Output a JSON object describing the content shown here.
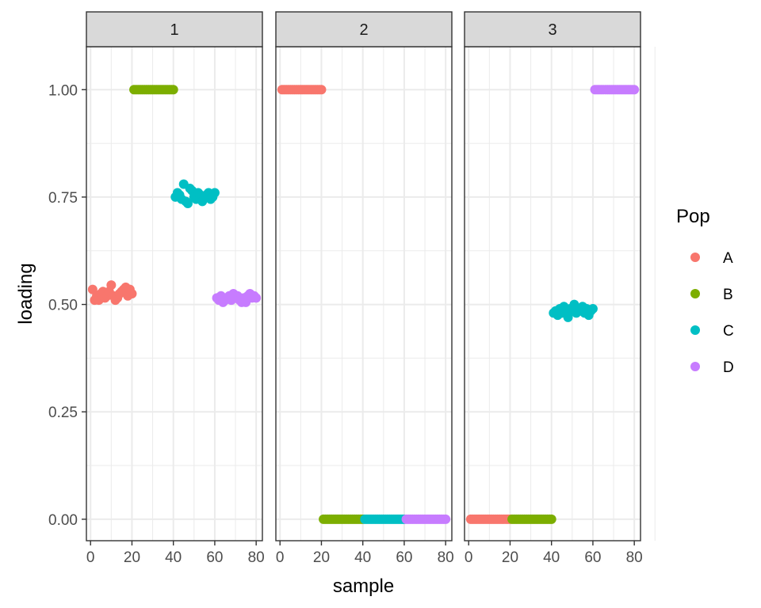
{
  "chart_data": {
    "type": "scatter",
    "facets": [
      "1",
      "2",
      "3"
    ],
    "xlabel": "sample",
    "ylabel": "loading",
    "x_ticks": [
      0,
      20,
      40,
      60,
      80
    ],
    "y_ticks": [
      "0.00",
      "0.25",
      "0.50",
      "0.75",
      "1.00"
    ],
    "xlim": [
      -2,
      83
    ],
    "ylim": [
      -0.05,
      1.1
    ],
    "grid": true,
    "legend": {
      "title": "Pop",
      "placement": "right",
      "entries": [
        {
          "name": "A",
          "color": "#F8766D"
        },
        {
          "name": "B",
          "color": "#7CAE00"
        },
        {
          "name": "C",
          "color": "#00BFC4"
        },
        {
          "name": "D",
          "color": "#C77CFF"
        }
      ]
    },
    "series": [
      {
        "name": "A",
        "x": [
          1,
          2,
          3,
          4,
          5,
          6,
          7,
          8,
          9,
          10,
          11,
          12,
          13,
          14,
          15,
          16,
          17,
          18,
          19,
          20
        ],
        "facet1": [
          0.535,
          0.51,
          0.52,
          0.51,
          0.525,
          0.53,
          0.515,
          0.52,
          0.53,
          0.545,
          0.52,
          0.51,
          0.515,
          0.525,
          0.53,
          0.535,
          0.54,
          0.52,
          0.535,
          0.525
        ],
        "facet2": [
          1,
          1,
          1,
          1,
          1,
          1,
          1,
          1,
          1,
          1,
          1,
          1,
          1,
          1,
          1,
          1,
          1,
          1,
          1,
          1
        ],
        "facet3": [
          0,
          0,
          0,
          0,
          0,
          0,
          0,
          0,
          0,
          0,
          0,
          0,
          0,
          0,
          0,
          0,
          0,
          0,
          0,
          0
        ]
      },
      {
        "name": "B",
        "x": [
          21,
          22,
          23,
          24,
          25,
          26,
          27,
          28,
          29,
          30,
          31,
          32,
          33,
          34,
          35,
          36,
          37,
          38,
          39,
          40
        ],
        "facet1": [
          1,
          1,
          1,
          1,
          1,
          1,
          1,
          1,
          1,
          1,
          1,
          1,
          1,
          1,
          1,
          1,
          1,
          1,
          1,
          1
        ],
        "facet2": [
          0,
          0,
          0,
          0,
          0,
          0,
          0,
          0,
          0,
          0,
          0,
          0,
          0,
          0,
          0,
          0,
          0,
          0,
          0,
          0
        ],
        "facet3": [
          0,
          0,
          0,
          0,
          0,
          0,
          0,
          0,
          0,
          0,
          0,
          0,
          0,
          0,
          0,
          0,
          0,
          0,
          0,
          0
        ]
      },
      {
        "name": "C",
        "x": [
          41,
          42,
          43,
          44,
          45,
          46,
          47,
          48,
          49,
          50,
          51,
          52,
          53,
          54,
          55,
          56,
          57,
          58,
          59,
          60
        ],
        "facet1": [
          0.75,
          0.76,
          0.755,
          0.745,
          0.78,
          0.74,
          0.735,
          0.77,
          0.765,
          0.75,
          0.745,
          0.76,
          0.755,
          0.74,
          0.75,
          0.755,
          0.76,
          0.745,
          0.75,
          0.76
        ],
        "facet2": [
          0,
          0,
          0,
          0,
          0,
          0,
          0,
          0,
          0,
          0,
          0,
          0,
          0,
          0,
          0,
          0,
          0,
          0,
          0,
          0
        ],
        "facet3": [
          0.48,
          0.485,
          0.475,
          0.49,
          0.48,
          0.495,
          0.485,
          0.47,
          0.49,
          0.485,
          0.5,
          0.48,
          0.49,
          0.485,
          0.495,
          0.48,
          0.49,
          0.475,
          0.485,
          0.49
        ]
      },
      {
        "name": "D",
        "x": [
          61,
          62,
          63,
          64,
          65,
          66,
          67,
          68,
          69,
          70,
          71,
          72,
          73,
          74,
          75,
          76,
          77,
          78,
          79,
          80
        ],
        "facet1": [
          0.515,
          0.51,
          0.52,
          0.505,
          0.51,
          0.515,
          0.52,
          0.51,
          0.525,
          0.515,
          0.52,
          0.51,
          0.505,
          0.515,
          0.505,
          0.52,
          0.525,
          0.515,
          0.52,
          0.515
        ],
        "facet2": [
          0,
          0,
          0,
          0,
          0,
          0,
          0,
          0,
          0,
          0,
          0,
          0,
          0,
          0,
          0,
          0,
          0,
          0,
          0,
          0
        ],
        "facet3": [
          1,
          1,
          1,
          1,
          1,
          1,
          1,
          1,
          1,
          1,
          1,
          1,
          1,
          1,
          1,
          1,
          1,
          1,
          1,
          1
        ]
      }
    ]
  }
}
